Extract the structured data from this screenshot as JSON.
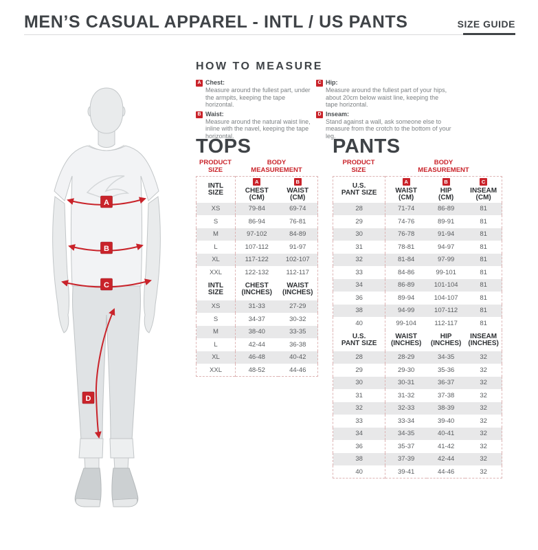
{
  "header": {
    "title": "MEN’S CASUAL APPAREL - INTL / US PANTS",
    "size_guide_label": "SIZE GUIDE"
  },
  "colors": {
    "accent_red": "#c9232a",
    "row_stripe": "#e8e8e9",
    "table_border": "#ddb3b3",
    "heading_gray": "#3f4347"
  },
  "how_to_measure": {
    "heading": "HOW TO MEASURE",
    "items": [
      {
        "letter": "A",
        "label": "Chest:",
        "text": "Measure around the fullest part, under the armpits, keeping the tape horizontal."
      },
      {
        "letter": "B",
        "label": "Waist:",
        "text": "Measure around the natural waist line, inline with the navel, keeping the tape horizontal."
      },
      {
        "letter": "C",
        "label": "Hip:",
        "text": "Measure around the fullest part of your hips, about 20cm below waist line, keeping the tape horizontal."
      },
      {
        "letter": "D",
        "label": "Inseam:",
        "text": "Stand against a wall, ask someone else to measure from the crotch to the bottom of your leg."
      }
    ]
  },
  "figure": {
    "markers": {
      "a": "A",
      "b": "B",
      "c": "C",
      "d": "D"
    }
  },
  "tops": {
    "heading": "TOPS",
    "product_line1": "PRODUCT",
    "product_line2": "SIZE",
    "body_line1": "BODY",
    "body_line2": "MEASUREMENT",
    "cm": {
      "size_line1": "INTL",
      "size_line2": "SIZE",
      "columns": [
        {
          "badge": "A",
          "name": "CHEST",
          "unit": "(CM)"
        },
        {
          "badge": "B",
          "name": "WAIST",
          "unit": "(CM)"
        }
      ],
      "rows": [
        [
          "XS",
          "79-84",
          "69-74"
        ],
        [
          "S",
          "86-94",
          "76-81"
        ],
        [
          "M",
          "97-102",
          "84-89"
        ],
        [
          "L",
          "107-112",
          "91-97"
        ],
        [
          "XL",
          "117-122",
          "102-107"
        ],
        [
          "XXL",
          "122-132",
          "112-117"
        ]
      ]
    },
    "inches": {
      "size_line1": "INTL",
      "size_line2": "SIZE",
      "columns": [
        {
          "name": "CHEST",
          "unit": "(INCHES)"
        },
        {
          "name": "WAIST",
          "unit": "(INCHES)"
        }
      ],
      "rows": [
        [
          "XS",
          "31-33",
          "27-29"
        ],
        [
          "S",
          "34-37",
          "30-32"
        ],
        [
          "M",
          "38-40",
          "33-35"
        ],
        [
          "L",
          "42-44",
          "36-38"
        ],
        [
          "XL",
          "46-48",
          "40-42"
        ],
        [
          "XXL",
          "48-52",
          "44-46"
        ]
      ]
    }
  },
  "pants": {
    "heading": "PANTS",
    "product_line1": "PRODUCT",
    "product_line2": "SIZE",
    "body_line1": "BODY",
    "body_line2": "MEASUREMENT",
    "cm": {
      "size_line1": "U.S.",
      "size_line2": "PANT SIZE",
      "columns": [
        {
          "badge": "A",
          "name": "WAIST",
          "unit": "(CM)"
        },
        {
          "badge": "B",
          "name": "HIP",
          "unit": "(CM)"
        },
        {
          "badge": "C",
          "name": "INSEAM",
          "unit": "(CM)"
        }
      ],
      "rows": [
        [
          "28",
          "71-74",
          "86-89",
          "81"
        ],
        [
          "29",
          "74-76",
          "89-91",
          "81"
        ],
        [
          "30",
          "76-78",
          "91-94",
          "81"
        ],
        [
          "31",
          "78-81",
          "94-97",
          "81"
        ],
        [
          "32",
          "81-84",
          "97-99",
          "81"
        ],
        [
          "33",
          "84-86",
          "99-101",
          "81"
        ],
        [
          "34",
          "86-89",
          "101-104",
          "81"
        ],
        [
          "36",
          "89-94",
          "104-107",
          "81"
        ],
        [
          "38",
          "94-99",
          "107-112",
          "81"
        ],
        [
          "40",
          "99-104",
          "112-117",
          "81"
        ]
      ]
    },
    "inches": {
      "size_line1": "U.S.",
      "size_line2": "PANT SIZE",
      "columns": [
        {
          "name": "WAIST",
          "unit": "(INCHES)"
        },
        {
          "name": "HIP",
          "unit": "(INCHES)"
        },
        {
          "name": "INSEAM",
          "unit": "(INCHES)"
        }
      ],
      "rows": [
        [
          "28",
          "28-29",
          "34-35",
          "32"
        ],
        [
          "29",
          "29-30",
          "35-36",
          "32"
        ],
        [
          "30",
          "30-31",
          "36-37",
          "32"
        ],
        [
          "31",
          "31-32",
          "37-38",
          "32"
        ],
        [
          "32",
          "32-33",
          "38-39",
          "32"
        ],
        [
          "33",
          "33-34",
          "39-40",
          "32"
        ],
        [
          "34",
          "34-35",
          "40-41",
          "32"
        ],
        [
          "36",
          "35-37",
          "41-42",
          "32"
        ],
        [
          "38",
          "37-39",
          "42-44",
          "32"
        ],
        [
          "40",
          "39-41",
          "44-46",
          "32"
        ]
      ]
    }
  }
}
